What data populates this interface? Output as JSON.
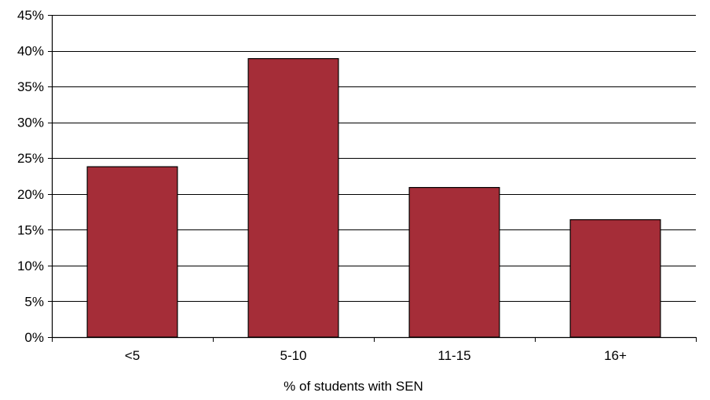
{
  "chart_data": {
    "type": "bar",
    "title": "",
    "xlabel": "% of students with SEN",
    "ylabel": "",
    "categories": [
      "<5",
      "5-10",
      "11-15",
      "16+"
    ],
    "values": [
      23.8,
      38.9,
      20.9,
      16.4
    ],
    "ylim": [
      0,
      45
    ],
    "yticks": [
      0,
      5,
      10,
      15,
      20,
      25,
      30,
      35,
      40,
      45
    ],
    "ytick_labels": [
      "0%",
      "5%",
      "10%",
      "15%",
      "20%",
      "25%",
      "30%",
      "35%",
      "40%",
      "45%"
    ],
    "grid": true,
    "legend": "none",
    "bar_color": "#a52d38"
  }
}
